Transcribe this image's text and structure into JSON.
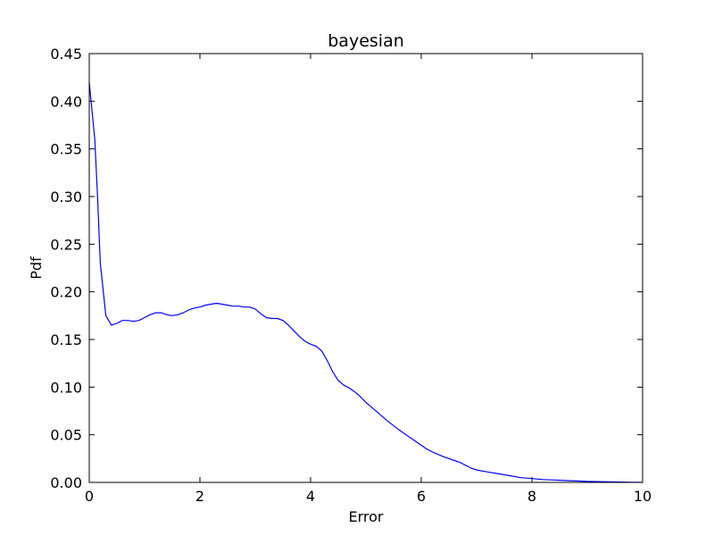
{
  "chart_data": {
    "type": "line",
    "title": "bayesian",
    "xlabel": "Error",
    "ylabel": "Pdf",
    "xlim": [
      0,
      10
    ],
    "ylim": [
      0,
      0.45
    ],
    "xticks": [
      0,
      2,
      4,
      6,
      8,
      10
    ],
    "xtick_labels": [
      "0",
      "2",
      "4",
      "6",
      "8",
      "10"
    ],
    "yticks": [
      0.0,
      0.05,
      0.1,
      0.15,
      0.2,
      0.25,
      0.3,
      0.35,
      0.4,
      0.45
    ],
    "ytick_labels": [
      "0.00",
      "0.05",
      "0.10",
      "0.15",
      "0.20",
      "0.25",
      "0.30",
      "0.35",
      "0.40",
      "0.45"
    ],
    "grid": false,
    "line_color": "#0000ff",
    "series": [
      {
        "x": [
          0,
          0.05,
          0.1,
          0.15,
          0.2,
          0.3,
          0.4,
          0.5,
          0.6,
          0.7,
          0.8,
          0.9,
          1.0,
          1.1,
          1.2,
          1.3,
          1.4,
          1.5,
          1.6,
          1.7,
          1.8,
          1.9,
          2.0,
          2.1,
          2.2,
          2.3,
          2.4,
          2.5,
          2.6,
          2.7,
          2.8,
          2.9,
          3.0,
          3.1,
          3.2,
          3.3,
          3.4,
          3.5,
          3.6,
          3.7,
          3.8,
          3.9,
          4.0,
          4.1,
          4.2,
          4.3,
          4.4,
          4.5,
          4.6,
          4.7,
          4.8,
          4.9,
          5.0,
          5.2,
          5.4,
          5.6,
          5.8,
          6.0,
          6.1,
          6.2,
          6.4,
          6.6,
          6.7,
          6.8,
          6.9,
          7.0,
          7.2,
          7.4,
          7.6,
          7.8,
          8.0,
          8.2,
          8.4,
          8.6,
          8.8,
          9.0,
          9.2,
          9.4,
          9.6,
          9.8,
          10.0
        ],
        "y": [
          0.42,
          0.39,
          0.36,
          0.3,
          0.23,
          0.175,
          0.165,
          0.167,
          0.17,
          0.17,
          0.169,
          0.17,
          0.173,
          0.176,
          0.178,
          0.178,
          0.176,
          0.175,
          0.176,
          0.178,
          0.181,
          0.183,
          0.184,
          0.186,
          0.187,
          0.188,
          0.187,
          0.186,
          0.185,
          0.185,
          0.184,
          0.184,
          0.182,
          0.177,
          0.173,
          0.172,
          0.172,
          0.17,
          0.165,
          0.159,
          0.153,
          0.148,
          0.145,
          0.143,
          0.138,
          0.128,
          0.116,
          0.107,
          0.102,
          0.099,
          0.095,
          0.09,
          0.084,
          0.074,
          0.064,
          0.055,
          0.047,
          0.039,
          0.035,
          0.032,
          0.027,
          0.023,
          0.021,
          0.018,
          0.015,
          0.013,
          0.011,
          0.009,
          0.007,
          0.005,
          0.004,
          0.003,
          0.0025,
          0.002,
          0.0015,
          0.001,
          0.0008,
          0.0006,
          0.0004,
          0.0002,
          0.0
        ]
      }
    ]
  }
}
